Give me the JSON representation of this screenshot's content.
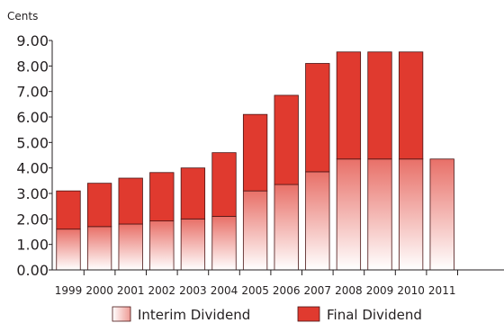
{
  "chart_data": {
    "type": "bar",
    "stacked": true,
    "unit_label": "Cents",
    "title": "",
    "xlabel": "",
    "ylabel": "",
    "categories": [
      "1999",
      "2000",
      "2001",
      "2002",
      "2003",
      "2004",
      "2005",
      "2006",
      "2007",
      "2008",
      "2009",
      "2010",
      "2011"
    ],
    "series": [
      {
        "name": "Interim Dividend",
        "values": [
          1.6,
          1.7,
          1.8,
          1.92,
          2.0,
          2.1,
          3.1,
          3.35,
          3.85,
          4.35,
          4.35,
          4.35,
          4.35
        ]
      },
      {
        "name": "Final Dividend",
        "values": [
          1.5,
          1.7,
          1.8,
          1.9,
          2.0,
          2.5,
          3.0,
          3.5,
          4.25,
          4.2,
          4.2,
          4.2,
          0
        ]
      }
    ],
    "yticks": [
      "0.00",
      "1.00",
      "2.00",
      "3.00",
      "4.00",
      "5.00",
      "6.00",
      "7.00",
      "8.00",
      "9.00"
    ],
    "ylim": [
      0,
      9
    ],
    "grid": false,
    "legend_position": "bottom",
    "colors": {
      "final": "#e03a2f",
      "interim_top": "#e87068",
      "interim_bottom": "#ffffff",
      "outline": "#4a1414",
      "axis": "#231f20"
    }
  }
}
